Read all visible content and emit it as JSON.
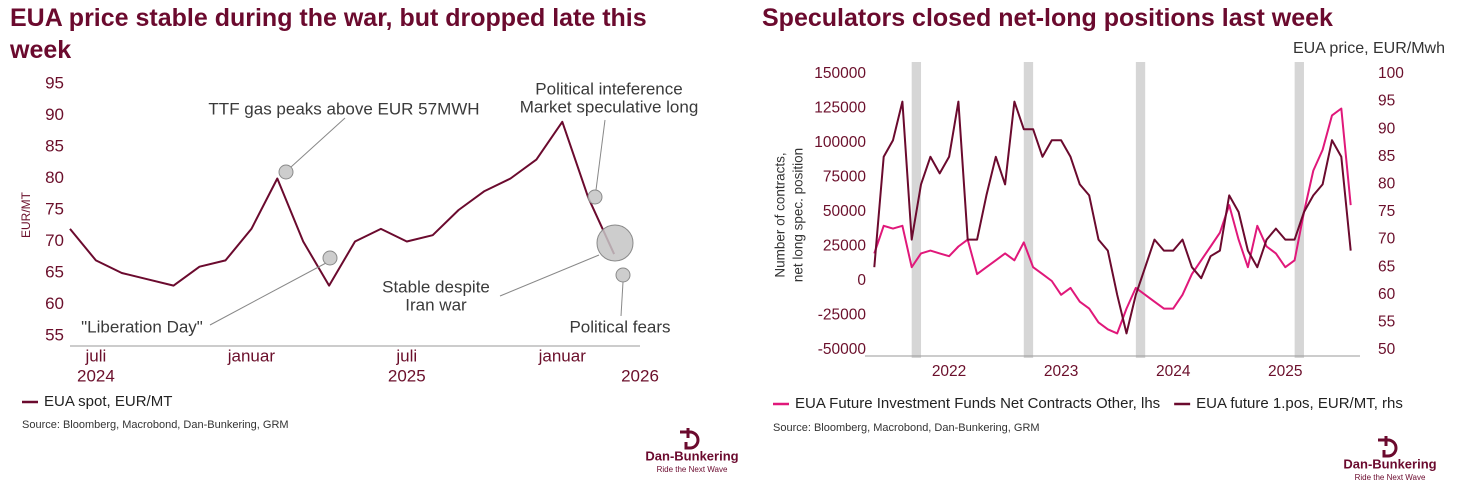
{
  "chart_data": [
    {
      "type": "line",
      "title": "EUA price stable during the war, but dropped late this week",
      "y_label": "EUR/MT",
      "x": [
        "2024-06",
        "2024-07",
        "2024-08",
        "2024-09",
        "2024-10",
        "2024-11",
        "2024-12",
        "2025-01",
        "2025-02",
        "2025-03",
        "2025-04",
        "2025-05",
        "2025-06",
        "2025-07",
        "2025-08",
        "2025-09",
        "2025-10",
        "2025-11",
        "2025-12",
        "2026-01",
        "2026-02",
        "2026-03"
      ],
      "series": [
        {
          "name": "EUA spot, EUR/MT",
          "color": "#6b0a2e",
          "values": [
            72,
            67,
            65,
            64,
            63,
            66,
            67,
            72,
            80,
            70,
            63,
            70,
            72,
            70,
            71,
            75,
            78,
            80,
            83,
            89,
            77,
            68
          ]
        }
      ],
      "xlim": [
        "2024-06",
        "2026-04"
      ],
      "xticks": [
        {
          "value": "2024-07",
          "label": "juli"
        },
        {
          "value": "2025-01",
          "label": "januar"
        },
        {
          "value": "2025-07",
          "label": "juli"
        },
        {
          "value": "2026-01",
          "label": "januar"
        }
      ],
      "year_labels": [
        {
          "value": "2024-07",
          "label": "2024"
        },
        {
          "value": "2025-07",
          "label": "2025"
        },
        {
          "value": "2026-04",
          "label": "2026"
        }
      ],
      "ylim": [
        55,
        95
      ],
      "yticks": [
        55,
        60,
        65,
        70,
        75,
        80,
        85,
        90,
        95
      ],
      "grid": false,
      "annotations": [
        [
          "TTF gas peaks above EUR 57MWH"
        ],
        [
          "Political inteference",
          "Market speculative long"
        ],
        [
          "Stable despite",
          "Iran war"
        ],
        [
          "\"Liberation Day\""
        ],
        [
          "Political fears"
        ]
      ],
      "source": "Source: Bloomberg, Macrobond, Dan-Bunkering, GRM",
      "logo": {
        "name": "Dan-Bunkering",
        "tagline": "Ride the Next Wave"
      }
    },
    {
      "type": "line",
      "title": "Speculators closed net-long positions last week",
      "y_label": [
        "Number of contracts,",
        "net long spec. position"
      ],
      "y2_label": "EUA price, EUR/Mwh",
      "x": [
        "2021-11",
        "2021-12",
        "2022-01",
        "2022-02",
        "2022-03",
        "2022-04",
        "2022-05",
        "2022-06",
        "2022-07",
        "2022-08",
        "2022-09",
        "2022-10",
        "2022-11",
        "2022-12",
        "2023-01",
        "2023-02",
        "2023-03",
        "2023-04",
        "2023-05",
        "2023-06",
        "2023-07",
        "2023-08",
        "2023-09",
        "2023-10",
        "2023-11",
        "2023-12",
        "2024-01",
        "2024-02",
        "2024-03",
        "2024-04",
        "2024-05",
        "2024-06",
        "2024-07",
        "2024-08",
        "2024-09",
        "2024-10",
        "2024-11",
        "2024-12",
        "2025-01",
        "2025-02",
        "2025-03",
        "2025-04",
        "2025-05",
        "2025-06",
        "2025-07",
        "2025-08",
        "2025-09",
        "2025-10",
        "2025-11",
        "2025-12",
        "2026-01",
        "2026-02"
      ],
      "series": [
        {
          "name": "EUA Future Investment Funds Net Contracts Other, lhs",
          "color": "#e0187a",
          "values": [
            20000,
            40000,
            38000,
            40000,
            10000,
            20000,
            22000,
            20000,
            18000,
            25000,
            30000,
            5000,
            10000,
            15000,
            20000,
            15000,
            28000,
            10000,
            5000,
            0,
            -10000,
            -5000,
            -15000,
            -20000,
            -30000,
            -35000,
            -38000,
            -20000,
            -5000,
            -10000,
            -15000,
            -20000,
            -20000,
            -10000,
            5000,
            15000,
            25000,
            35000,
            55000,
            30000,
            10000,
            40000,
            25000,
            20000,
            10000,
            15000,
            50000,
            80000,
            95000,
            120000,
            125000,
            55000
          ]
        },
        {
          "name": "EUA future 1.pos, EUR/MT, rhs",
          "color": "#6b0a2e",
          "axis": "y2",
          "values": [
            65,
            85,
            88,
            95,
            70,
            80,
            85,
            82,
            85,
            95,
            70,
            70,
            78,
            85,
            80,
            95,
            90,
            90,
            85,
            88,
            88,
            85,
            80,
            78,
            70,
            68,
            60,
            53,
            60,
            65,
            70,
            68,
            68,
            70,
            65,
            63,
            67,
            68,
            78,
            75,
            68,
            65,
            70,
            72,
            70,
            70,
            75,
            78,
            80,
            88,
            85,
            68
          ]
        }
      ],
      "xlim": [
        "2021-10",
        "2026-03"
      ],
      "xticks": [
        {
          "value": "2022-07",
          "label": "2022"
        },
        {
          "value": "2023-07",
          "label": "2023"
        },
        {
          "value": "2024-07",
          "label": "2024"
        },
        {
          "value": "2025-07",
          "label": "2025"
        }
      ],
      "ylim": [
        -50000,
        150000
      ],
      "yticks": [
        -50000,
        -25000,
        0,
        25000,
        50000,
        75000,
        100000,
        125000,
        150000
      ],
      "y2lim": [
        50,
        100
      ],
      "y2ticks": [
        50,
        55,
        60,
        65,
        70,
        75,
        80,
        85,
        90,
        95,
        100
      ],
      "grid": false,
      "shaded_periods": [
        [
          "2022-03",
          "2022-04"
        ],
        [
          "2023-03",
          "2023-04"
        ],
        [
          "2024-03",
          "2024-04"
        ],
        [
          "2025-08",
          "2025-09"
        ]
      ],
      "source": "Source: Bloomberg, Macrobond, Dan-Bunkering, GRM",
      "logo": {
        "name": "Dan-Bunkering",
        "tagline": "Ride the Next Wave"
      }
    }
  ]
}
